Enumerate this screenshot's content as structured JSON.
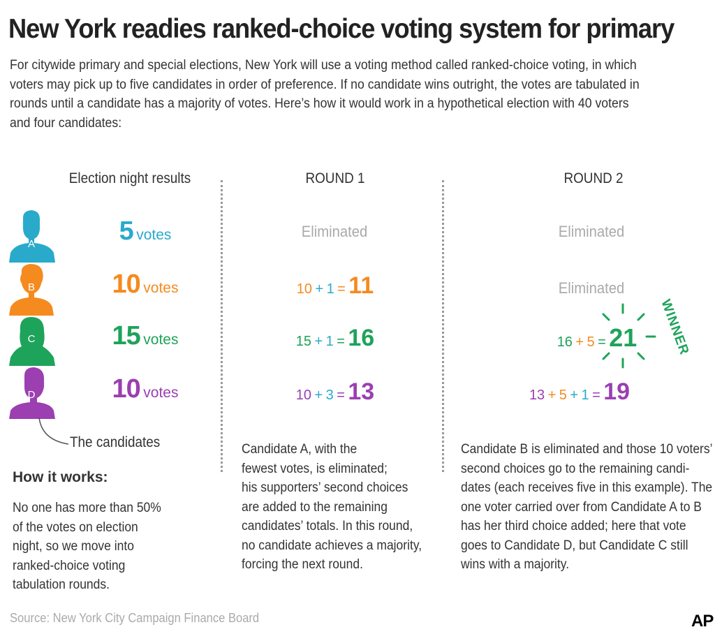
{
  "title": "New York readies ranked-choice voting system for primary",
  "intro": "For citywide primary and special elections, New York will use a voting method called ranked-choice voting, in which voters may pick up to five candidates in order of preference. If no candidate wins outright, the votes are tabulated in rounds until a candidate has a majority of votes. Here’s how it would work in a hypothetical election with 40 voters and four candidates:",
  "columns": {
    "election_night": "Election night results",
    "round1": "ROUND 1",
    "round2": "ROUND 2"
  },
  "colors": {
    "A": "#29aacb",
    "B": "#f58a1f",
    "C": "#1ea35a",
    "D": "#9b3fb1",
    "muted": "#aaaaaa"
  },
  "candidates": [
    {
      "letter": "A",
      "votes": "5",
      "votes_label": "votes"
    },
    {
      "letter": "B",
      "votes": "10",
      "votes_label": "votes"
    },
    {
      "letter": "C",
      "votes": "15",
      "votes_label": "votes"
    },
    {
      "letter": "D",
      "votes": "10",
      "votes_label": "votes"
    }
  ],
  "candidates_label": "The candidates",
  "round1": {
    "A": "Eliminated",
    "B": {
      "a": "10",
      "plus": "+",
      "b": "1",
      "eq": "=",
      "total": "11"
    },
    "C": {
      "a": "15",
      "plus": "+",
      "b": "1",
      "eq": "=",
      "total": "16"
    },
    "D": {
      "a": "10",
      "plus": "+",
      "b": "3",
      "eq": "=",
      "total": "13"
    },
    "text": [
      "Candidate A, with the",
      "fewest votes, is eliminated;",
      "his supporters’ second choices",
      "are added to the remaining",
      "candidates’ totals. In this round,",
      "no candidate achieves a majority,",
      "forcing the next round."
    ]
  },
  "round2": {
    "A": "Eliminated",
    "B": "Eliminated",
    "C": {
      "a": "16",
      "plus": "+",
      "b": "5",
      "eq": "=",
      "total": "21"
    },
    "D": {
      "a": "13",
      "plus1": "+",
      "b": "5",
      "plus2": "+",
      "c": "1",
      "eq": "=",
      "total": "19"
    },
    "winner": "WINNER",
    "text": [
      "Candidate B is eliminated and those 10 voters’",
      "second choices go to the remaining candi-",
      "dates (each receives five in this example). The",
      "one voter carried over from Candidate A to B",
      "has her third choice added; here that vote",
      "goes to Candidate D, but Candidate C still",
      "wins with a majority."
    ]
  },
  "how_it_works": {
    "heading": "How it works:",
    "lines": [
      "No one has more than 50%",
      "of the votes on election",
      "night, so we move into",
      "ranked-choice voting",
      "tabulation rounds."
    ]
  },
  "source": "Source: New York City Campaign Finance Board",
  "credit": "AP"
}
